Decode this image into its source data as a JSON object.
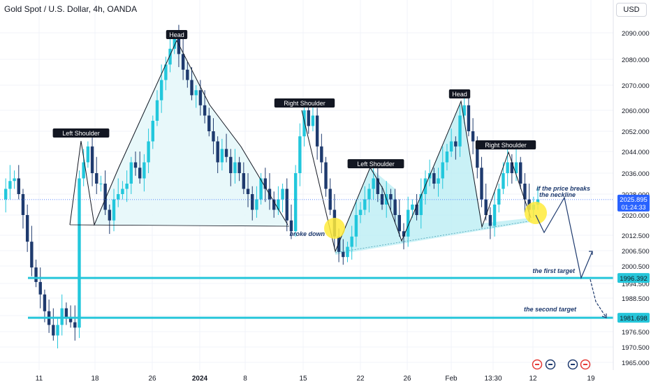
{
  "header": {
    "title": "Gold Spot / U.S. Dollar, 4h, OANDA",
    "currency": "USD"
  },
  "colors": {
    "up": "#089981",
    "down": "#1e3a6e",
    "up_body": "#22c7dc",
    "target_line": "#26c6da",
    "pattern_line": "#131722",
    "fill_left": "#e6f7fa",
    "fill_right": "#b2ebf2",
    "highlight": "#ffeb3b",
    "annotation_text": "#1e3a6e",
    "price_label_bg": "#2962ff"
  },
  "chart_data": {
    "type": "candlestick",
    "title": "Gold Spot / U.S. Dollar, 4h, OANDA",
    "ylim": [
      1962,
      2096
    ],
    "y_ticks": [
      "2090.000",
      "2080.000",
      "2070.000",
      "2060.000",
      "2052.000",
      "2044.000",
      "2036.000",
      "2028.000",
      "2020.000",
      "2012.500",
      "2006.500",
      "2000.500",
      "1994.500",
      "1988.500",
      "1982.500",
      "1976.500",
      "1970.500",
      "1965.000"
    ],
    "y_tick_values": [
      2090,
      2080,
      2070,
      2060,
      2052,
      2044,
      2036,
      2028,
      2020,
      2012.5,
      2006.5,
      2000.5,
      1994.5,
      1988.5,
      1982.5,
      1976.5,
      1970.5,
      1965
    ],
    "x_ticks": [
      "11",
      "18",
      "26",
      "2024",
      "8",
      "15",
      "22",
      "26",
      "Feb",
      "13:30",
      "12",
      "19"
    ],
    "x_tick_bold": [
      false,
      false,
      false,
      true,
      false,
      false,
      false,
      false,
      false,
      false,
      false,
      false
    ],
    "current_price": {
      "value": "2025.895",
      "countdown": "01:24:33",
      "y": 2025.895
    },
    "targets": [
      {
        "label": "1996.392",
        "y": 1996.392,
        "annotation": "the first target"
      },
      {
        "label": "1981.698",
        "y": 1981.698,
        "annotation": "the second target"
      }
    ],
    "pattern_labels": [
      "Left Shoulder",
      "Head",
      "Right Shoulder",
      "Left Shoulder",
      "Head",
      "Right Shoulder"
    ],
    "annotations": {
      "broke_down": "broke down",
      "breaks_line1": "if the price breaks",
      "breaks_line2": "the neckline"
    },
    "price_path": [
      2026,
      2030,
      2033,
      2034,
      2028,
      2020,
      2010,
      2000,
      1995,
      1990,
      1984,
      1979,
      1975,
      1979,
      1985,
      1982,
      1980,
      1978,
      2034,
      2040,
      2046,
      2036,
      2032,
      2032,
      2022,
      2018,
      2026,
      2028,
      2030,
      2032,
      2040,
      2038,
      2034,
      2040,
      2048,
      2056,
      2064,
      2072,
      2078,
      2084,
      2089,
      2082,
      2076,
      2072,
      2066,
      2068,
      2062,
      2058,
      2052,
      2048,
      2040,
      2045,
      2042,
      2036,
      2040,
      2036,
      2030,
      2028,
      2022,
      2026,
      2034,
      2030,
      2026,
      2022,
      2026,
      2030,
      2018,
      2014,
      2036,
      2050,
      2060,
      2054,
      2058,
      2046,
      2040,
      2030,
      2022,
      2012,
      2006,
      2004,
      2008,
      2012,
      2020,
      2022,
      2026,
      2030,
      2034,
      2028,
      2024,
      2028,
      2026,
      2020,
      2014,
      2012,
      2022,
      2024,
      2020,
      2028,
      2034,
      2036,
      2032,
      2034,
      2040,
      2044,
      2048,
      2046,
      2058,
      2062,
      2052,
      2048,
      2038,
      2026,
      2020,
      2016,
      2024,
      2030,
      2036,
      2040,
      2036,
      2040,
      2032,
      2026,
      2022,
      2024,
      2026
    ],
    "pattern_left": {
      "neckline": [
        [
          2014,
          2017
        ],
        [
          2026,
          2017
        ],
        [
          2038,
          2014
        ]
      ],
      "path": [
        [
          2013,
          2017
        ],
        [
          2014,
          2050
        ],
        [
          2015,
          2017
        ],
        [
          2017,
          2045
        ],
        [
          2019,
          2037
        ],
        [
          2021,
          2090
        ],
        [
          2023,
          2046
        ],
        [
          2025,
          2058
        ],
        [
          2027,
          2020
        ]
      ]
    }
  }
}
